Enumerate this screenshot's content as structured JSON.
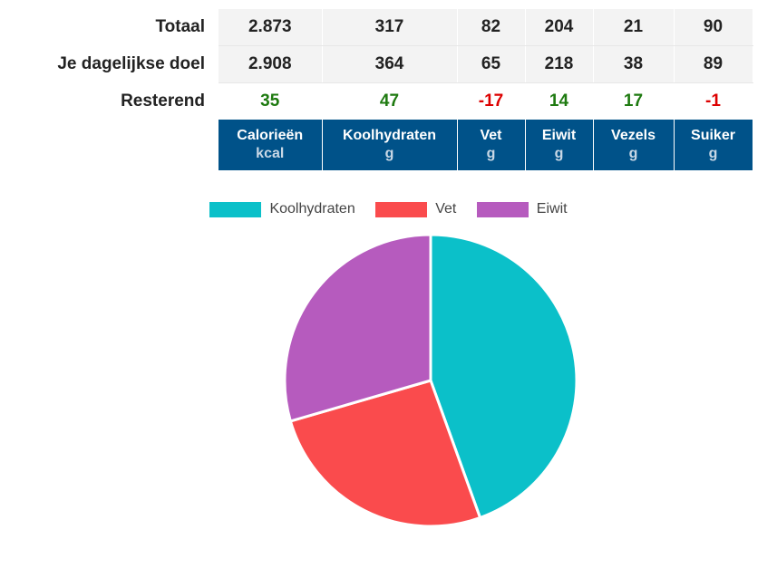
{
  "table": {
    "rows": [
      {
        "label": "Totaal",
        "values": [
          "2.873",
          "317",
          "82",
          "204",
          "21",
          "90"
        ]
      },
      {
        "label": "Je dagelijkse doel",
        "values": [
          "2.908",
          "364",
          "65",
          "218",
          "38",
          "89"
        ]
      },
      {
        "label": "Resterend",
        "values": [
          "35",
          "47",
          "-17",
          "14",
          "17",
          "-1"
        ],
        "status": [
          "positive",
          "positive",
          "negative",
          "positive",
          "positive",
          "negative"
        ]
      }
    ],
    "columns": [
      {
        "name": "Calorieën",
        "unit": "kcal"
      },
      {
        "name": "Koolhydraten",
        "unit": "g"
      },
      {
        "name": "Vet",
        "unit": "g"
      },
      {
        "name": "Eiwit",
        "unit": "g"
      },
      {
        "name": "Vezels",
        "unit": "g"
      },
      {
        "name": "Suiker",
        "unit": "g"
      }
    ],
    "colors": {
      "header": "#005289",
      "positive": "#1e7a10",
      "negative": "#dd0000"
    }
  },
  "chart_data": {
    "type": "pie",
    "categories": [
      "Koolhydraten",
      "Vet",
      "Eiwit"
    ],
    "values": [
      44.5,
      26.0,
      29.5
    ],
    "colors": [
      "#0bc0c9",
      "#fa4b4d",
      "#b65bbe"
    ],
    "legend": "top"
  }
}
